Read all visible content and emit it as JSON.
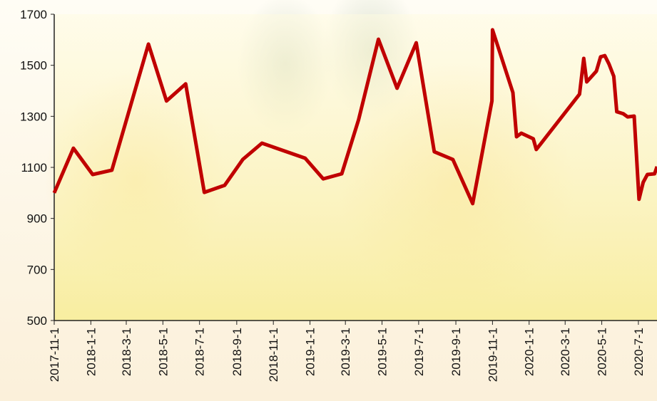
{
  "chart_data": {
    "type": "line",
    "x": [
      "2017-11-1",
      "2017-12-3",
      "2018-1-4",
      "2018-2-5",
      "2018-4-7",
      "2018-5-7",
      "2018-6-8",
      "2018-7-9",
      "2018-8-12",
      "2018-9-11",
      "2018-10-13",
      "2018-12-24",
      "2019-1-23",
      "2019-2-23",
      "2019-3-23",
      "2019-4-25",
      "2019-5-26",
      "2019-6-27",
      "2019-7-27",
      "2019-8-27",
      "2019-9-29",
      "2019-10-31",
      "2019-11-1",
      "2019-12-5",
      "2019-12-11",
      "2019-12-19",
      "2020-1-8",
      "2020-1-13",
      "2020-3-25",
      "2020-4-1",
      "2020-4-6",
      "2020-4-22",
      "2020-4-29",
      "2020-5-6",
      "2020-5-13",
      "2020-5-21",
      "2020-5-26",
      "2020-6-6",
      "2020-6-13",
      "2020-6-24",
      "2020-7-2",
      "2020-7-9",
      "2020-7-16",
      "2020-7-28",
      "2020-8-1"
    ],
    "series": [
      {
        "color": "#c00000",
        "values": [
          1000,
          1175,
          1072,
          1089,
          1583,
          1360,
          1427,
          1002,
          1030,
          1131,
          1195,
          1136,
          1055,
          1075,
          1287,
          1602,
          1410,
          1588,
          1161,
          1131,
          958,
          1360,
          1639,
          1393,
          1220,
          1234,
          1212,
          1170,
          1387,
          1527,
          1435,
          1477,
          1533,
          1538,
          1505,
          1457,
          1318,
          1310,
          1298,
          1301,
          975,
          1041,
          1072,
          1075,
          1103
        ]
      }
    ],
    "xlim": [
      "2017-11-1",
      "2020-8-1"
    ],
    "xticks": [
      "2017-11-1",
      "2018-1-1",
      "2018-3-1",
      "2018-5-1",
      "2018-7-1",
      "2018-9-1",
      "2018-11-1",
      "2019-1-1",
      "2019-3-1",
      "2019-5-1",
      "2019-7-1",
      "2019-9-1",
      "2019-11-1",
      "2020-1-1",
      "2020-3-1",
      "2020-5-1",
      "2020-7-1"
    ],
    "ylim": [
      500,
      1700
    ],
    "yticks": [
      500,
      700,
      900,
      1100,
      1300,
      1500,
      1700
    ],
    "grid": false
  }
}
